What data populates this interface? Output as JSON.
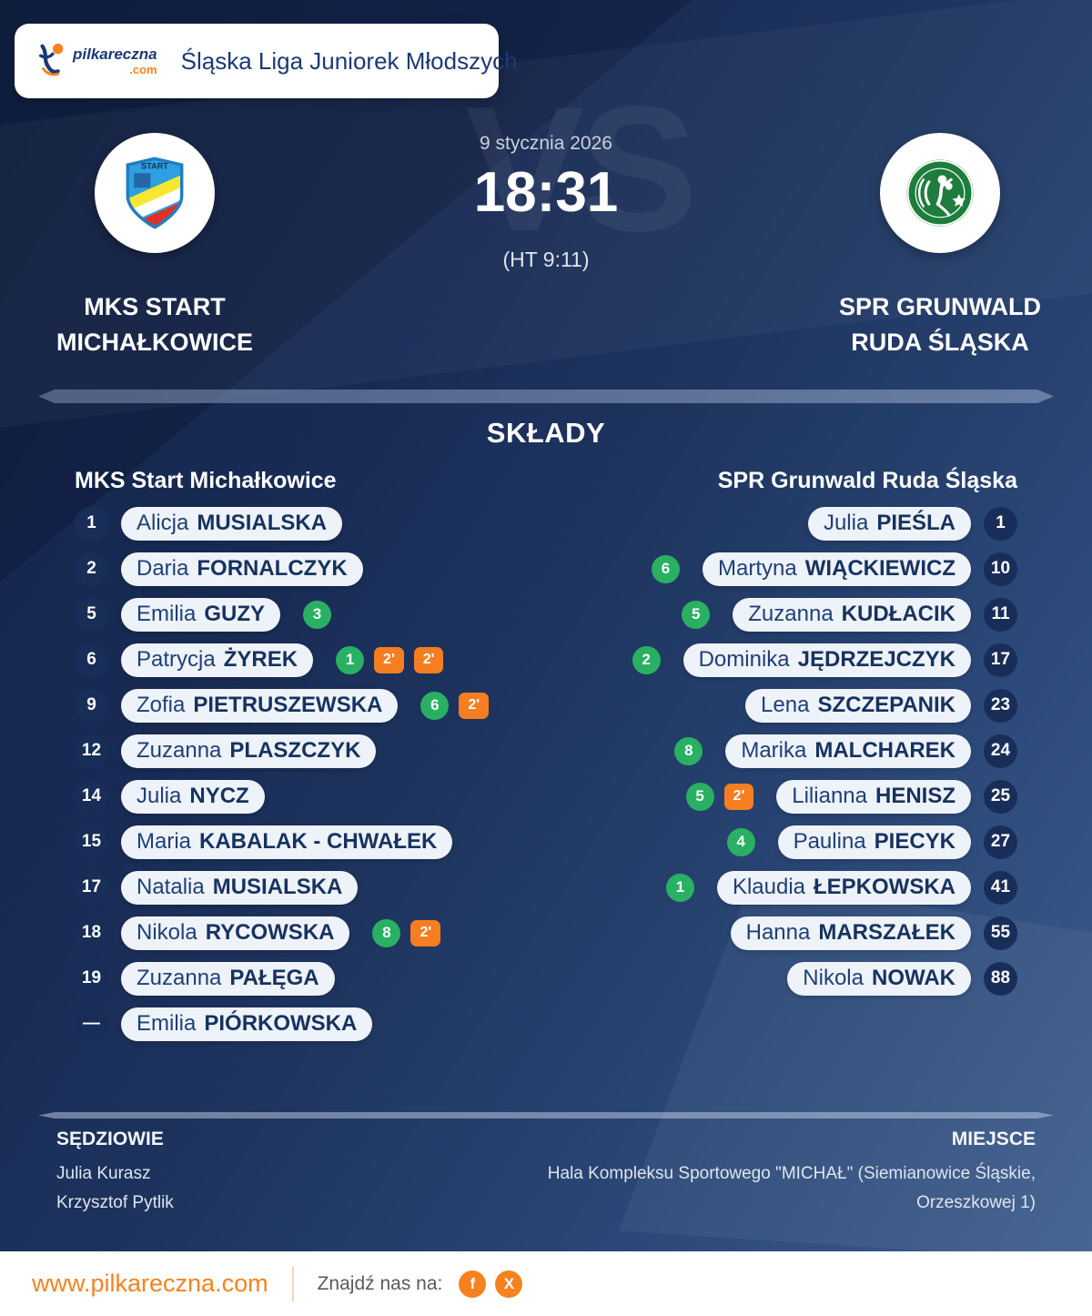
{
  "header": {
    "site_name": "pilkareczna",
    "site_tld": ".com",
    "league": "Śląska Liga Juniorek Młodszych"
  },
  "match": {
    "date": "9 stycznia 2026",
    "score": "18:31",
    "halftime": "(HT 9:11)",
    "vs_watermark": "VS",
    "home": {
      "name_line1": "MKS START",
      "name_line2": "MICHAŁKOWICE"
    },
    "away": {
      "name_line1": "SPR GRUNWALD",
      "name_line2": "RUDA ŚLĄSKA"
    }
  },
  "lineups": {
    "title": "SKŁADY",
    "home_team": "MKS Start Michałkowice",
    "away_team": "SPR Grunwald Ruda Śląska",
    "home_players": [
      {
        "number": "1",
        "first": "Alicja",
        "last": "MUSIALSKA",
        "goals": null,
        "suspensions": []
      },
      {
        "number": "2",
        "first": "Daria",
        "last": "FORNALCZYK",
        "goals": null,
        "suspensions": []
      },
      {
        "number": "5",
        "first": "Emilia",
        "last": "GUZY",
        "goals": "3",
        "suspensions": []
      },
      {
        "number": "6",
        "first": "Patrycja",
        "last": "ŻYREK",
        "goals": "1",
        "suspensions": [
          "2'",
          "2'"
        ]
      },
      {
        "number": "9",
        "first": "Zofia",
        "last": "PIETRUSZEWSKA",
        "goals": "6",
        "suspensions": [
          "2'"
        ]
      },
      {
        "number": "12",
        "first": "Zuzanna",
        "last": "PLASZCZYK",
        "goals": null,
        "suspensions": []
      },
      {
        "number": "14",
        "first": "Julia",
        "last": "NYCZ",
        "goals": null,
        "suspensions": []
      },
      {
        "number": "15",
        "first": "Maria",
        "last": "KABALAK - CHWAŁEK",
        "goals": null,
        "suspensions": []
      },
      {
        "number": "17",
        "first": "Natalia",
        "last": "MUSIALSKA",
        "goals": null,
        "suspensions": []
      },
      {
        "number": "18",
        "first": "Nikola",
        "last": "RYCOWSKA",
        "goals": "8",
        "suspensions": [
          "2'"
        ]
      },
      {
        "number": "19",
        "first": "Zuzanna",
        "last": "PAŁĘGA",
        "goals": null,
        "suspensions": []
      },
      {
        "number": "—",
        "first": "Emilia",
        "last": "PIÓRKOWSKA",
        "goals": null,
        "suspensions": []
      }
    ],
    "away_players": [
      {
        "number": "1",
        "first": "Julia",
        "last": "PIEŚLA",
        "goals": null,
        "suspensions": []
      },
      {
        "number": "10",
        "first": "Martyna",
        "last": "WIĄCKIEWICZ",
        "goals": "6",
        "suspensions": []
      },
      {
        "number": "11",
        "first": "Zuzanna",
        "last": "KUDŁACIK",
        "goals": "5",
        "suspensions": []
      },
      {
        "number": "17",
        "first": "Dominika",
        "last": "JĘDRZEJCZYK",
        "goals": "2",
        "suspensions": []
      },
      {
        "number": "23",
        "first": "Lena",
        "last": "SZCZEPANIK",
        "goals": null,
        "suspensions": []
      },
      {
        "number": "24",
        "first": "Marika",
        "last": "MALCHAREK",
        "goals": "8",
        "suspensions": []
      },
      {
        "number": "25",
        "first": "Lilianna",
        "last": "HENISZ",
        "goals": "5",
        "suspensions": [
          "2'"
        ]
      },
      {
        "number": "27",
        "first": "Paulina",
        "last": "PIECYK",
        "goals": "4",
        "suspensions": []
      },
      {
        "number": "41",
        "first": "Klaudia",
        "last": "ŁEPKOWSKA",
        "goals": "1",
        "suspensions": []
      },
      {
        "number": "55",
        "first": "Hanna",
        "last": "MARSZAŁEK",
        "goals": null,
        "suspensions": []
      },
      {
        "number": "88",
        "first": "Nikola",
        "last": "NOWAK",
        "goals": null,
        "suspensions": []
      }
    ]
  },
  "officials": {
    "referees_label": "SĘDZIOWIE",
    "referees": [
      "Julia Kurasz",
      "Krzysztof Pytlik"
    ],
    "venue_label": "MIEJSCE",
    "venue_line1": "Hala Kompleksu Sportowego \"MICHAŁ\" (Siemianowice Śląskie,",
    "venue_line2": "Orzeszkowej 1)"
  },
  "footer": {
    "website": "www.pilkareczna.com",
    "find_us": "Znajdź nas na:",
    "facebook_label": "f",
    "x_label": "X"
  },
  "colors": {
    "accent_orange": "#F5821F",
    "goal_green": "#29B062",
    "suspension_orange": "#F57E20",
    "pill_background": "#EEF2F9",
    "navy_text": "#1B3A74",
    "background_dark": "#122446",
    "background_light": "#40608F"
  }
}
